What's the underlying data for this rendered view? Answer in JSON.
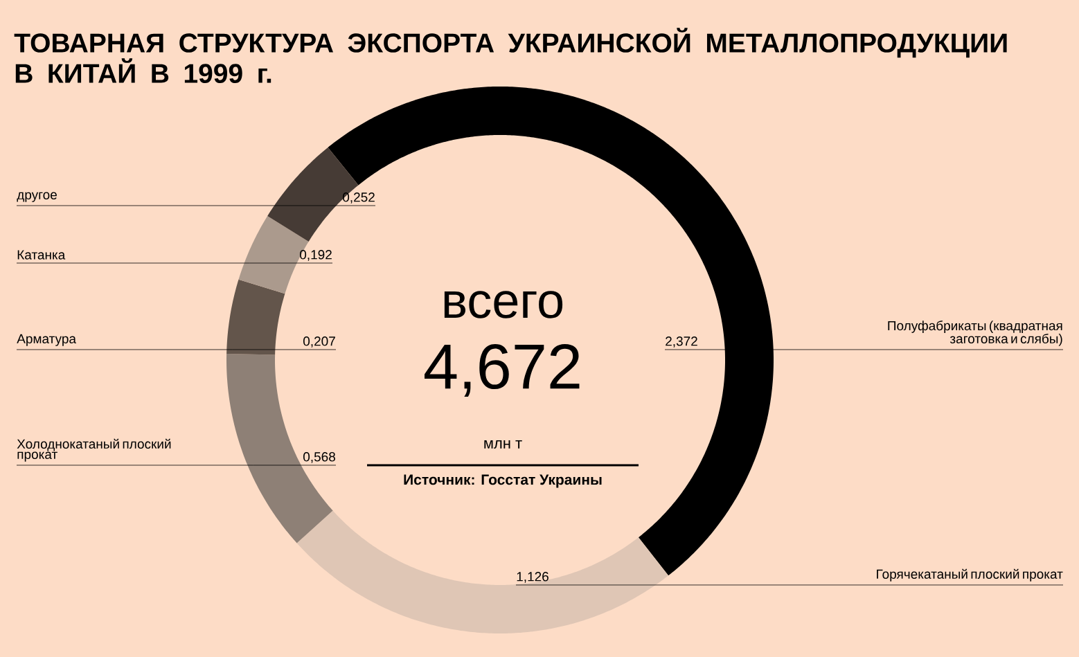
{
  "chart_data": {
    "type": "donut",
    "title": "ТОВАРНАЯ СТРУКТУРА ЭКСПОРТА УКРАИНСКОЙ МЕТАЛЛОПРОДУКЦИИ В КИТАЙ В 1999 г.",
    "categories": [
      "Полуфабрикаты (квадратная заготовка и слябы)",
      "Горячекатаный плоский прокат",
      "Холоднокатаный плоский прокат",
      "Арматура",
      "Катанка",
      "другое"
    ],
    "values": [
      2.372,
      1.126,
      0.568,
      0.207,
      0.192,
      0.252
    ],
    "value_labels": [
      "2,372",
      "1,126",
      "0,568",
      "0,207",
      "0,192",
      "0,252"
    ],
    "colors": [
      "#000000",
      "#dfc6b5",
      "#8e8076",
      "#63554b",
      "#ab9a8d",
      "#463b35"
    ],
    "annotations": [
      "всего",
      "4,672",
      "млн т",
      "Источник: Госстат Украины"
    ]
  }
}
